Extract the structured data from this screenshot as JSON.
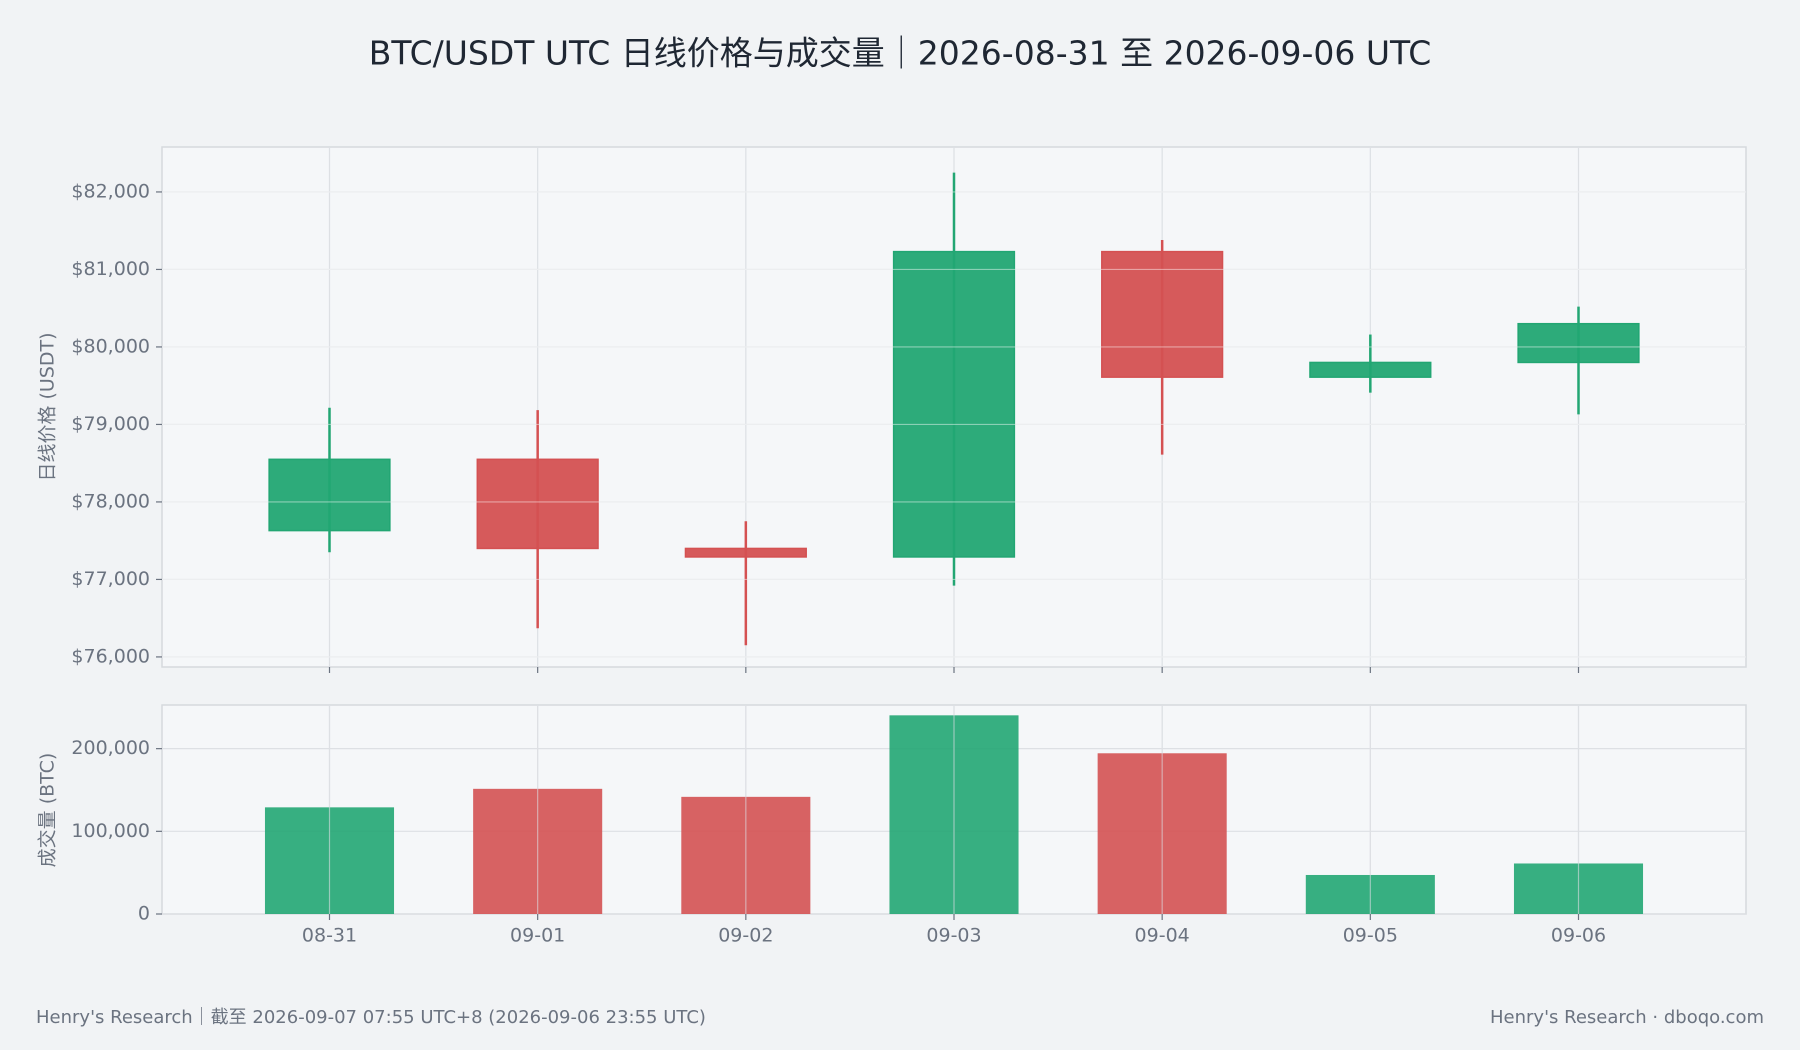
{
  "chart_data": [
    {
      "type": "candlestick",
      "title": "BTC/USDT UTC 日线价格与成交量｜2026-08-31 至 2026-09-06 UTC",
      "y_label": "日线价格 (USDT)",
      "open": [
        77630,
        78550,
        77400,
        77290,
        81230,
        79610,
        79800
      ],
      "high": [
        79215,
        79185,
        77750,
        82250,
        81380,
        80160,
        80520
      ],
      "low": [
        77350,
        76370,
        76150,
        76920,
        78610,
        79410,
        79130
      ],
      "close": [
        78550,
        77400,
        77290,
        81230,
        79610,
        79800,
        80300
      ],
      "up_color": "#22a673",
      "down_color": "#d45152",
      "ylim": [
        75870,
        82580
      ],
      "yticks": [
        {
          "value": 76000,
          "label": "$76,000"
        },
        {
          "value": 77000,
          "label": "$77,000"
        },
        {
          "value": 78000,
          "label": "$78,000"
        },
        {
          "value": 79000,
          "label": "$79,000"
        },
        {
          "value": 80000,
          "label": "$80,000"
        },
        {
          "value": 81000,
          "label": "$81,000"
        },
        {
          "value": 82000,
          "label": "$82,000"
        }
      ],
      "grid": true
    },
    {
      "type": "bar",
      "y_label": "成交量 (BTC)",
      "categories": [
        "08-31",
        "09-01",
        "09-02",
        "09-03",
        "09-04",
        "09-05",
        "09-06"
      ],
      "values": [
        129000,
        151400,
        141700,
        240300,
        194400,
        47200,
        61100
      ],
      "colors": [
        "#22a673",
        "#d45152",
        "#d45152",
        "#22a673",
        "#d45152",
        "#22a673",
        "#22a673"
      ],
      "ylim": [
        0,
        252800
      ],
      "yticks": [
        0,
        {
          "value": 100000,
          "label": "100,000"
        },
        {
          "value": 200000,
          "label": "200,000"
        }
      ],
      "grid": true
    }
  ],
  "footer": {
    "left": "Henry's Research｜截至 2026-09-07 07:55 UTC+8 (2026-09-06 23:55 UTC)",
    "right": "Henry's Research · dboqo.com"
  }
}
